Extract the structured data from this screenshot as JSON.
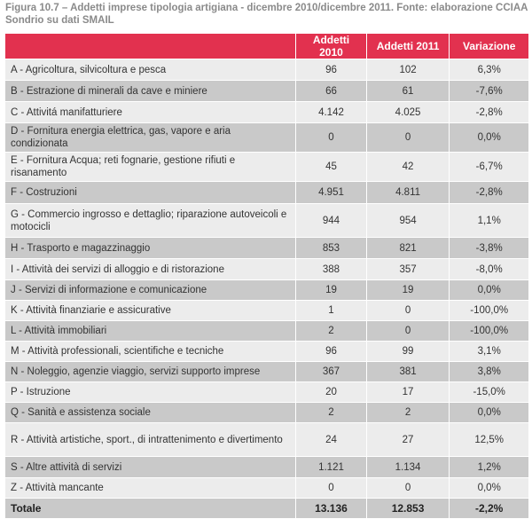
{
  "caption": "Figura 10.7 – Addetti imprese tipologia artigiana - dicembre 2010/dicembre 2011. Fonte: elaborazione CCIAA Sondrio su dati SMAIL",
  "headers": [
    "",
    "Addetti 2010",
    "Addetti 2011",
    "Variazione"
  ],
  "rows": [
    {
      "label": "A - Agricoltura, silvicoltura e pesca",
      "y2010": "96",
      "y2011": "102",
      "var": "6,3%"
    },
    {
      "label": "B - Estrazione di minerali da cave e miniere",
      "y2010": "66",
      "y2011": "61",
      "var": "-7,6%"
    },
    {
      "label": "C - Attivitá manifatturiere",
      "y2010": "4.142",
      "y2011": "4.025",
      "var": "-2,8%"
    },
    {
      "label": "D - Fornitura energia elettrica, gas, vapore e aria condizionata",
      "y2010": "0",
      "y2011": "0",
      "var": "0,0%"
    },
    {
      "label": "E - Fornitura Acqua; reti fognarie, gestione rifiuti e risanamento",
      "y2010": "45",
      "y2011": "42",
      "var": "-6,7%"
    },
    {
      "label": "F - Costruzioni",
      "y2010": "4.951",
      "y2011": "4.811",
      "var": "-2,8%"
    },
    {
      "label": "G - Commercio ingrosso e dettaglio; riparazione autoveicoli e motocicli",
      "y2010": "944",
      "y2011": "954",
      "var": "1,1%"
    },
    {
      "label": "H - Trasporto e magazzinaggio",
      "y2010": "853",
      "y2011": "821",
      "var": "-3,8%"
    },
    {
      "label": "I - Attività dei servizi di alloggio e di ristorazione",
      "y2010": "388",
      "y2011": "357",
      "var": "-8,0%"
    },
    {
      "label": "J - Servizi di informazione e comunicazione",
      "y2010": "19",
      "y2011": "19",
      "var": "0,0%"
    },
    {
      "label": "K - Attività finanziarie e assicurative",
      "y2010": "1",
      "y2011": "0",
      "var": "-100,0%"
    },
    {
      "label": "L - Attività immobiliari",
      "y2010": "2",
      "y2011": "0",
      "var": "-100,0%"
    },
    {
      "label": "M - Attività professionali, scientifiche e tecniche",
      "y2010": "96",
      "y2011": "99",
      "var": "3,1%"
    },
    {
      "label": "N - Noleggio, agenzie viaggio, servizi supporto imprese",
      "y2010": "367",
      "y2011": "381",
      "var": "3,8%"
    },
    {
      "label": "P - Istruzione",
      "y2010": "20",
      "y2011": "17",
      "var": "-15,0%"
    },
    {
      "label": "Q - Sanità e assistenza sociale",
      "y2010": "2",
      "y2011": "2",
      "var": "0,0%"
    },
    {
      "label": "R - Attività artistiche, sport., di intrattenimento e divertimento",
      "y2010": "24",
      "y2011": "27",
      "var": "12,5%"
    },
    {
      "label": "S - Altre attività di servizi",
      "y2010": "1.121",
      "y2011": "1.134",
      "var": "1,2%"
    },
    {
      "label": "Z - Attività mancante",
      "y2010": "0",
      "y2011": "0",
      "var": "0,0%"
    }
  ],
  "total": {
    "label": "Totale",
    "y2010": "13.136",
    "y2011": "12.853",
    "var": "-2,2%"
  }
}
